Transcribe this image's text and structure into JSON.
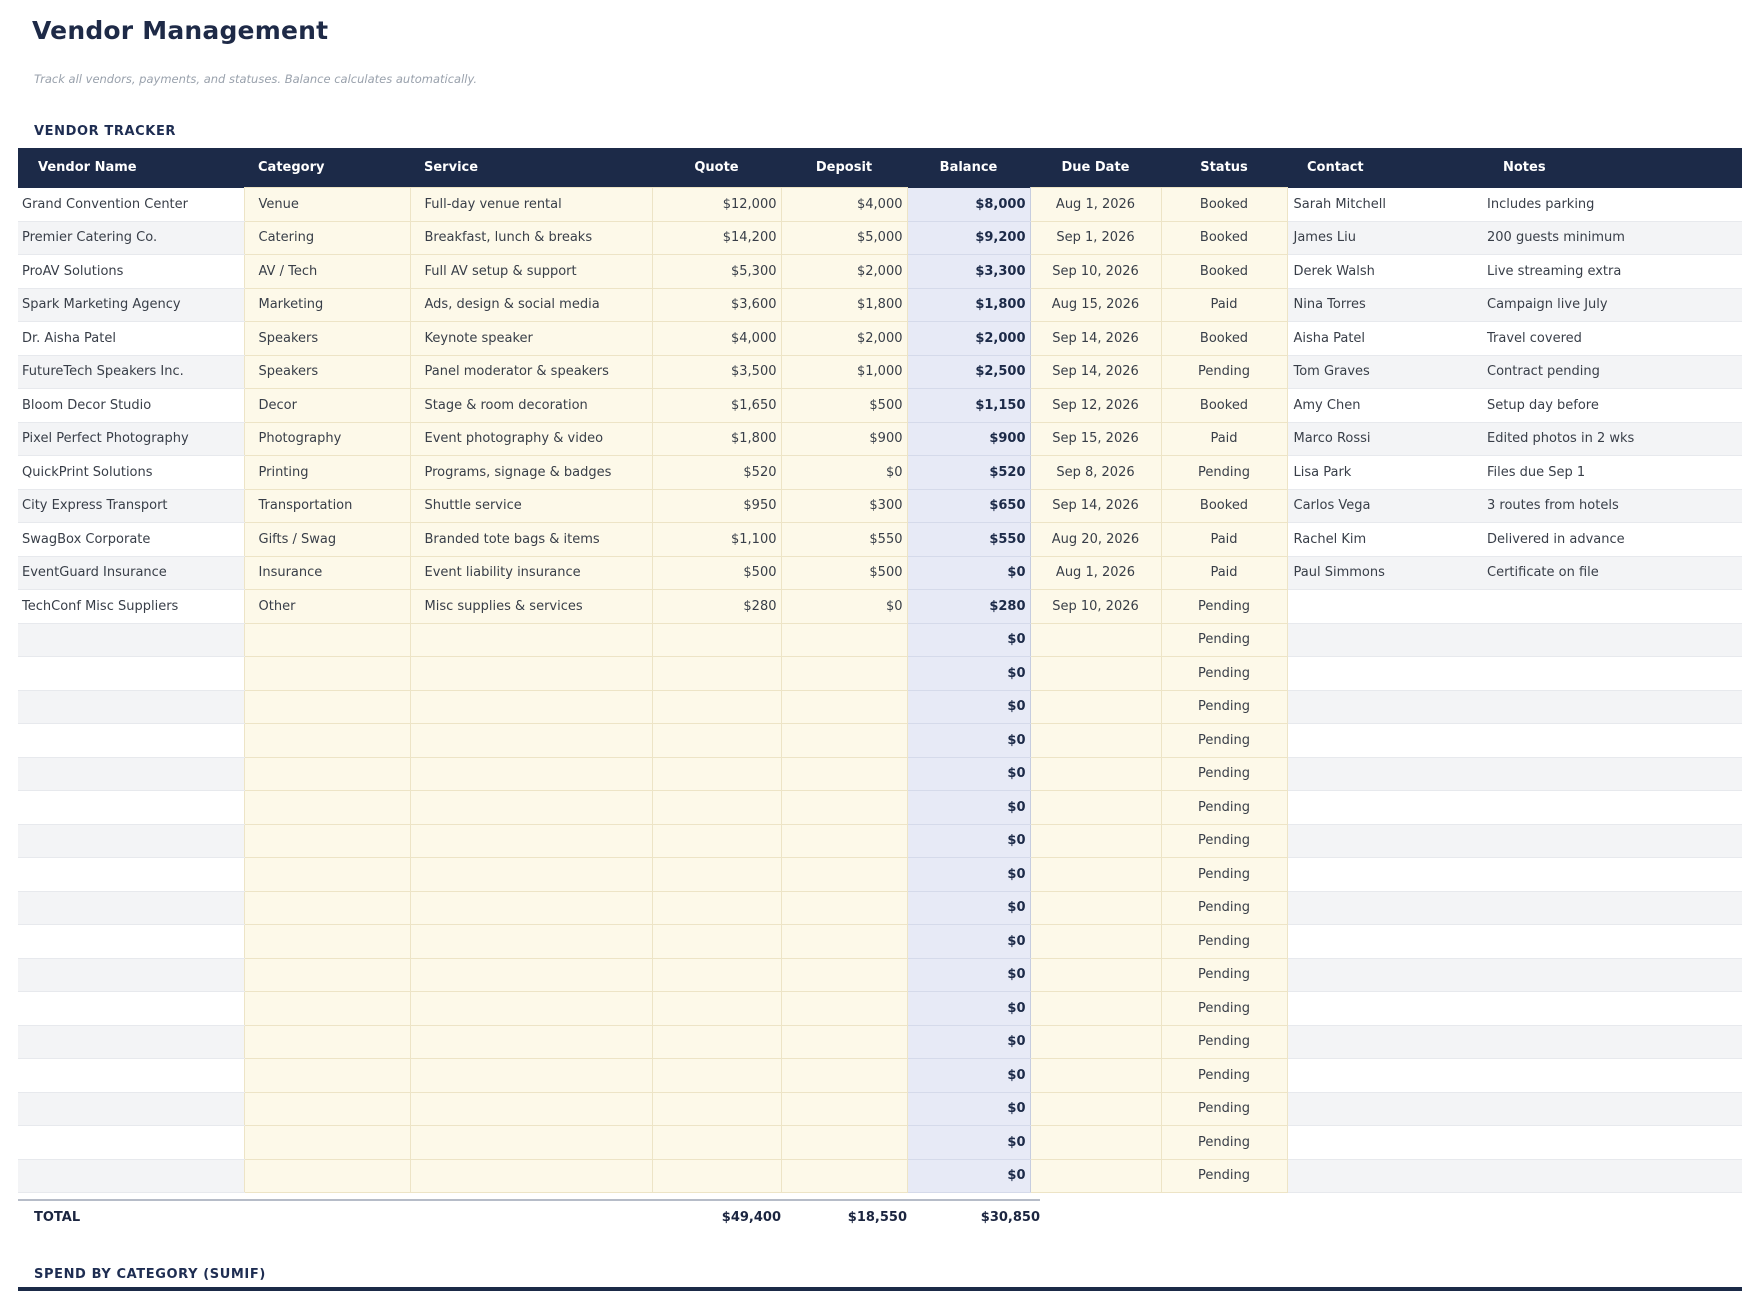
{
  "page": {
    "title": "Vendor Management",
    "subtitle": "Track all vendors, payments, and statuses. Balance calculates automatically.",
    "section1_title": "VENDOR TRACKER",
    "section2_title": "SPEND BY CATEGORY (SUMIF)"
  },
  "table": {
    "columns": [
      "Vendor Name",
      "Category",
      "Service",
      "Quote",
      "Deposit",
      "Balance",
      "Due Date",
      "Status",
      "Contact",
      "Notes"
    ],
    "rows": [
      {
        "vendor": "Grand Convention Center",
        "category": "Venue",
        "service": "Full-day venue rental",
        "quote": "$12,000",
        "deposit": "$4,000",
        "balance": "$8,000",
        "due": "Aug 1, 2026",
        "status": "Booked",
        "contact": "Sarah Mitchell",
        "notes": "Includes parking"
      },
      {
        "vendor": "Premier Catering Co.",
        "category": "Catering",
        "service": "Breakfast, lunch & breaks",
        "quote": "$14,200",
        "deposit": "$5,000",
        "balance": "$9,200",
        "due": "Sep 1, 2026",
        "status": "Booked",
        "contact": "James Liu",
        "notes": "200 guests minimum"
      },
      {
        "vendor": "ProAV Solutions",
        "category": "AV / Tech",
        "service": "Full AV setup & support",
        "quote": "$5,300",
        "deposit": "$2,000",
        "balance": "$3,300",
        "due": "Sep 10, 2026",
        "status": "Booked",
        "contact": "Derek Walsh",
        "notes": "Live streaming extra"
      },
      {
        "vendor": "Spark Marketing Agency",
        "category": "Marketing",
        "service": "Ads, design & social media",
        "quote": "$3,600",
        "deposit": "$1,800",
        "balance": "$1,800",
        "due": "Aug 15, 2026",
        "status": "Paid",
        "contact": "Nina Torres",
        "notes": "Campaign live July"
      },
      {
        "vendor": "Dr. Aisha Patel",
        "category": "Speakers",
        "service": "Keynote speaker",
        "quote": "$4,000",
        "deposit": "$2,000",
        "balance": "$2,000",
        "due": "Sep 14, 2026",
        "status": "Booked",
        "contact": "Aisha Patel",
        "notes": "Travel covered"
      },
      {
        "vendor": "FutureTech Speakers Inc.",
        "category": "Speakers",
        "service": "Panel moderator & speakers",
        "quote": "$3,500",
        "deposit": "$1,000",
        "balance": "$2,500",
        "due": "Sep 14, 2026",
        "status": "Pending",
        "contact": "Tom Graves",
        "notes": "Contract pending"
      },
      {
        "vendor": "Bloom Decor Studio",
        "category": "Decor",
        "service": "Stage & room decoration",
        "quote": "$1,650",
        "deposit": "$500",
        "balance": "$1,150",
        "due": "Sep 12, 2026",
        "status": "Booked",
        "contact": "Amy Chen",
        "notes": "Setup day before"
      },
      {
        "vendor": "Pixel Perfect Photography",
        "category": "Photography",
        "service": "Event photography & video",
        "quote": "$1,800",
        "deposit": "$900",
        "balance": "$900",
        "due": "Sep 15, 2026",
        "status": "Paid",
        "contact": "Marco Rossi",
        "notes": "Edited photos in 2 wks"
      },
      {
        "vendor": "QuickPrint Solutions",
        "category": "Printing",
        "service": "Programs, signage & badges",
        "quote": "$520",
        "deposit": "$0",
        "balance": "$520",
        "due": "Sep 8, 2026",
        "status": "Pending",
        "contact": "Lisa Park",
        "notes": "Files due Sep 1"
      },
      {
        "vendor": "City Express Transport",
        "category": "Transportation",
        "service": "Shuttle service",
        "quote": "$950",
        "deposit": "$300",
        "balance": "$650",
        "due": "Sep 14, 2026",
        "status": "Booked",
        "contact": "Carlos Vega",
        "notes": "3 routes from hotels"
      },
      {
        "vendor": "SwagBox Corporate",
        "category": "Gifts / Swag",
        "service": "Branded tote bags & items",
        "quote": "$1,100",
        "deposit": "$550",
        "balance": "$550",
        "due": "Aug 20, 2026",
        "status": "Paid",
        "contact": "Rachel Kim",
        "notes": "Delivered in advance"
      },
      {
        "vendor": "EventGuard Insurance",
        "category": "Insurance",
        "service": "Event liability insurance",
        "quote": "$500",
        "deposit": "$500",
        "balance": "$0",
        "due": "Aug 1, 2026",
        "status": "Paid",
        "contact": "Paul Simmons",
        "notes": "Certificate on file"
      },
      {
        "vendor": "TechConf Misc Suppliers",
        "category": "Other",
        "service": "Misc supplies & services",
        "quote": "$280",
        "deposit": "$0",
        "balance": "$280",
        "due": "Sep 10, 2026",
        "status": "Pending",
        "contact": "",
        "notes": ""
      }
    ],
    "empty_row": {
      "balance": "$0",
      "status": "Pending"
    },
    "empty_row_count": 17,
    "total": {
      "label": "TOTAL",
      "quote": "$49,400",
      "deposit": "$18,550",
      "balance": "$30,850"
    }
  },
  "colors": {
    "header_bg": "#1c2a48",
    "title_navy": "#1e2a47",
    "cream_cell": "#fdf9e9",
    "balance_cell": "#e7eaf6",
    "alt_row": "#f3f4f6"
  }
}
